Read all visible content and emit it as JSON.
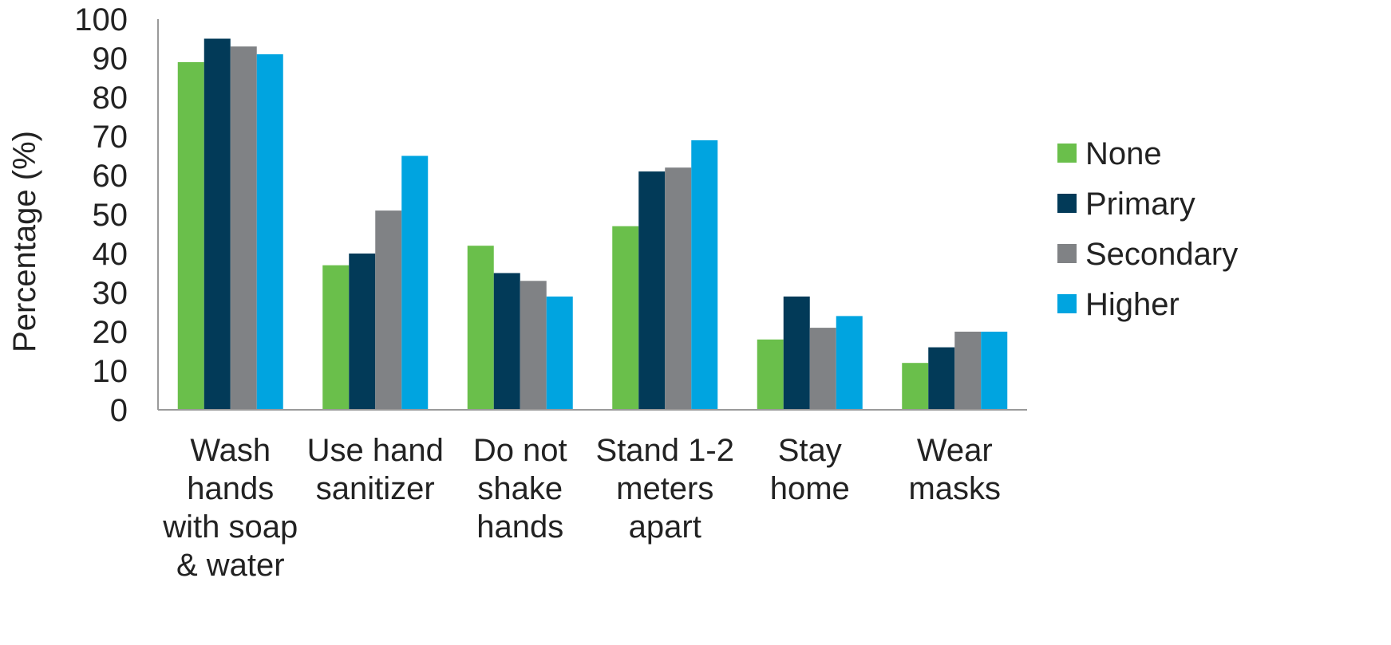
{
  "chart_data": {
    "type": "bar",
    "ylabel": "Percentage (%)",
    "xlabel": "",
    "ylim": [
      0,
      100
    ],
    "yticks": [
      0,
      10,
      20,
      30,
      40,
      50,
      60,
      70,
      80,
      90,
      100
    ],
    "grid": false,
    "legend_position": "right",
    "categories": [
      [
        "Wash",
        "hands",
        "with soap",
        "& water"
      ],
      [
        "Use hand",
        "sanitizer"
      ],
      [
        "Do not",
        "shake",
        "hands"
      ],
      [
        "Stand 1-2",
        "meters",
        "apart"
      ],
      [
        "Stay",
        "home"
      ],
      [
        "Wear",
        "masks"
      ]
    ],
    "series": [
      {
        "name": "None",
        "color": "#6abf4b",
        "values": [
          89,
          37,
          42,
          47,
          18,
          12
        ]
      },
      {
        "name": "Primary",
        "color": "#023a58",
        "values": [
          95,
          40,
          35,
          61,
          29,
          16
        ]
      },
      {
        "name": "Secondary",
        "color": "#808285",
        "values": [
          93,
          51,
          33,
          62,
          21,
          20
        ]
      },
      {
        "name": "Higher",
        "color": "#00a4e0",
        "values": [
          91,
          65,
          29,
          69,
          24,
          20
        ]
      }
    ]
  }
}
